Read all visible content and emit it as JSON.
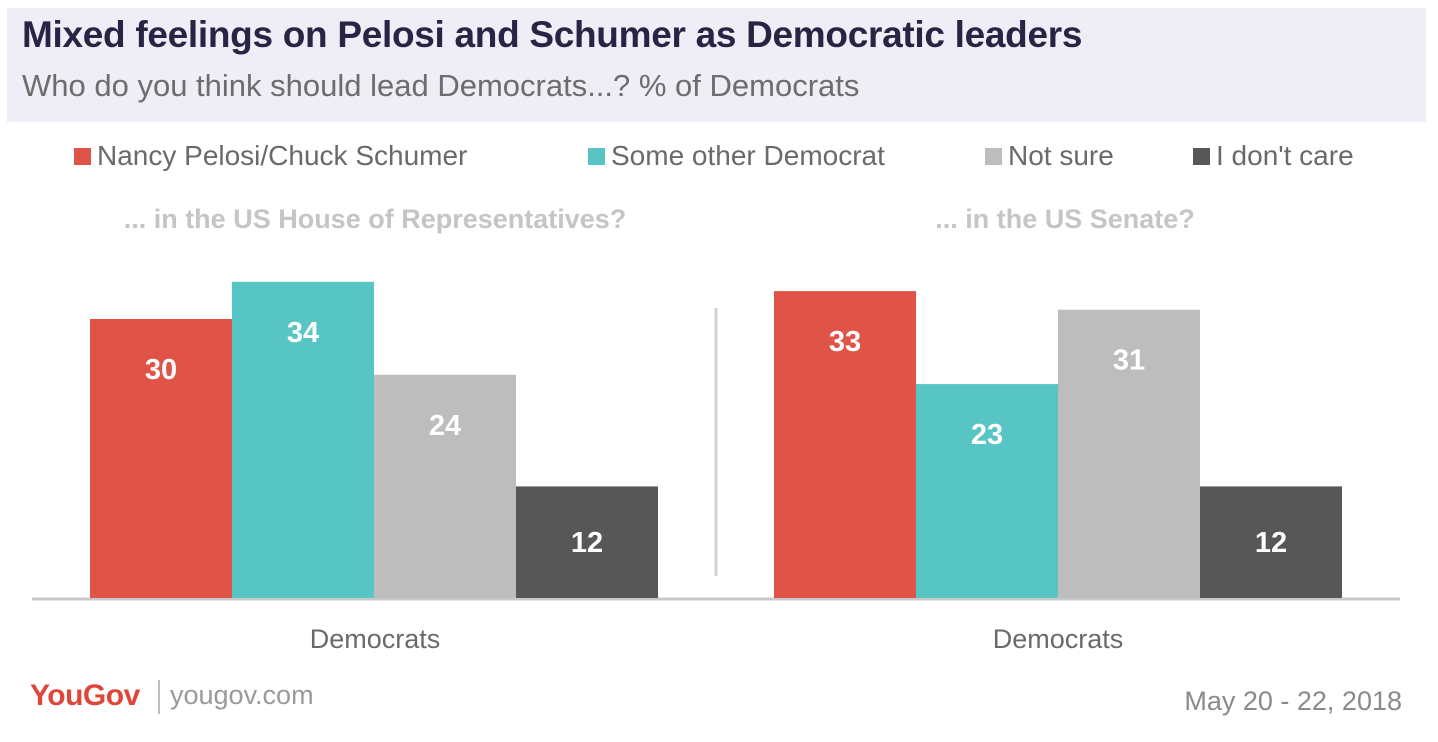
{
  "header": {
    "title": "Mixed feelings on Pelosi and Schumer as Democratic leaders",
    "subtitle": "Who do you think should lead Democrats...? % of Democrats"
  },
  "legend": [
    {
      "label": "Nancy Pelosi/Chuck Schumer",
      "color": "#e05447"
    },
    {
      "label": "Some other Democrat",
      "color": "#57c5c3"
    },
    {
      "label": "Not sure",
      "color": "#bdbdbd"
    },
    {
      "label": "I don't care",
      "color": "#575757"
    }
  ],
  "chart_data": [
    {
      "type": "bar",
      "title": "... in the US House of Representatives?",
      "categories": [
        "Democrats"
      ],
      "series": [
        {
          "name": "Nancy Pelosi/Chuck Schumer",
          "values": [
            30
          ]
        },
        {
          "name": "Some other Democrat",
          "values": [
            34
          ]
        },
        {
          "name": "Not sure",
          "values": [
            24
          ]
        },
        {
          "name": "I don't care",
          "values": [
            12
          ]
        }
      ],
      "grid": false,
      "legend": "top"
    },
    {
      "type": "bar",
      "title": "... in the US Senate?",
      "categories": [
        "Democrats"
      ],
      "series": [
        {
          "name": "Nancy Pelosi/Chuck Schumer",
          "values": [
            33
          ]
        },
        {
          "name": "Some other Democrat",
          "values": [
            23
          ]
        },
        {
          "name": "Not sure",
          "values": [
            31
          ]
        },
        {
          "name": "I don't care",
          "values": [
            12
          ]
        }
      ],
      "grid": false,
      "legend": "top"
    }
  ],
  "footer": {
    "logo": "YouGov",
    "url": "yougov.com",
    "date": "May 20 - 22, 2018"
  }
}
